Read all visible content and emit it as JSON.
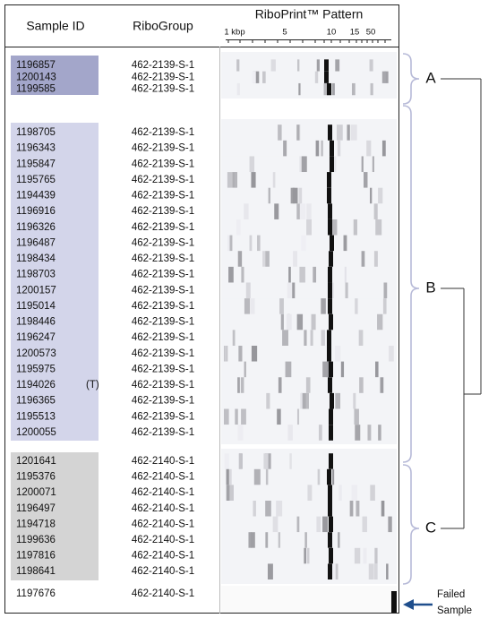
{
  "header": {
    "sample_id": "Sample ID",
    "ribogroup": "RiboGroup",
    "pattern": "RiboPrint™ Pattern"
  },
  "scale": [
    "1 kbp",
    "5",
    "10",
    "15",
    "50"
  ],
  "groups": [
    {
      "label": "A",
      "rows": [
        {
          "sample_id": "1196857",
          "ribogroup": "462-2139-S-1"
        },
        {
          "sample_id": "1200143",
          "ribogroup": "462-2139-S-1"
        },
        {
          "sample_id": "1199585",
          "ribogroup": "462-2139-S-1"
        }
      ]
    },
    {
      "label": "B",
      "rows": [
        {
          "sample_id": "1198705",
          "ribogroup": "462-2139-S-1"
        },
        {
          "sample_id": "1196343",
          "ribogroup": "462-2139-S-1"
        },
        {
          "sample_id": "1195847",
          "ribogroup": "462-2139-S-1"
        },
        {
          "sample_id": "1195765",
          "ribogroup": "462-2139-S-1"
        },
        {
          "sample_id": "1194439",
          "ribogroup": "462-2139-S-1"
        },
        {
          "sample_id": "1196916",
          "ribogroup": "462-2139-S-1"
        },
        {
          "sample_id": "1196326",
          "ribogroup": "462-2139-S-1"
        },
        {
          "sample_id": "1196487",
          "ribogroup": "462-2139-S-1"
        },
        {
          "sample_id": "1198434",
          "ribogroup": "462-2139-S-1"
        },
        {
          "sample_id": "1198703",
          "ribogroup": "462-2139-S-1"
        },
        {
          "sample_id": "1200157",
          "ribogroup": "462-2139-S-1"
        },
        {
          "sample_id": "1195014",
          "ribogroup": "462-2139-S-1"
        },
        {
          "sample_id": "1198446",
          "ribogroup": "462-2139-S-1"
        },
        {
          "sample_id": "1196247",
          "ribogroup": "462-2139-S-1"
        },
        {
          "sample_id": "1200573",
          "ribogroup": "462-2139-S-1"
        },
        {
          "sample_id": "1195975",
          "ribogroup": "462-2139-S-1"
        },
        {
          "sample_id": "1194026",
          "ribogroup": "462-2139-S-1",
          "note": "(T)"
        },
        {
          "sample_id": "1196365",
          "ribogroup": "462-2139-S-1"
        },
        {
          "sample_id": "1195513",
          "ribogroup": "462-2139-S-1"
        },
        {
          "sample_id": "1200055",
          "ribogroup": "462-2139-S-1"
        }
      ]
    },
    {
      "label": "C",
      "rows": [
        {
          "sample_id": "1201641",
          "ribogroup": "462-2140-S-1"
        },
        {
          "sample_id": "1195376",
          "ribogroup": "462-2140-S-1"
        },
        {
          "sample_id": "1200071",
          "ribogroup": "462-2140-S-1"
        },
        {
          "sample_id": "1196497",
          "ribogroup": "462-2140-S-1"
        },
        {
          "sample_id": "1194718",
          "ribogroup": "462-2140-S-1"
        },
        {
          "sample_id": "1199636",
          "ribogroup": "462-2140-S-1"
        },
        {
          "sample_id": "1197816",
          "ribogroup": "462-2140-S-1"
        },
        {
          "sample_id": "1198641",
          "ribogroup": "462-2140-S-1"
        }
      ]
    }
  ],
  "failed": {
    "row": {
      "sample_id": "1197676",
      "ribogroup": "462-2140-S-1"
    },
    "label": [
      "Failed",
      "Sample"
    ]
  }
}
